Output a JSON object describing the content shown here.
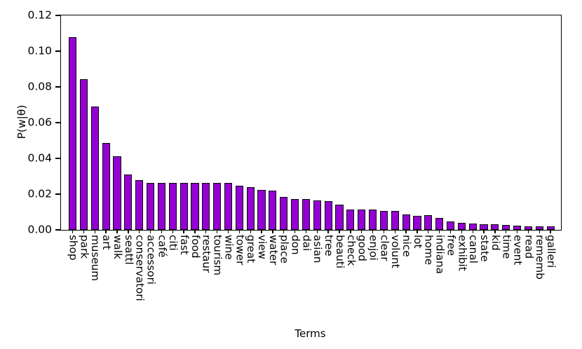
{
  "figure": {
    "background_color": "#ffffff",
    "axis_color": "#000000"
  },
  "chart_data": {
    "type": "bar",
    "title": "",
    "xlabel": "Terms",
    "ylabel": "P(w|θ)",
    "ylim": [
      0,
      0.12
    ],
    "yticks": [
      0,
      0.02,
      0.04,
      0.06,
      0.08,
      0.1,
      0.12
    ],
    "ytick_labels": [
      "0.00",
      "0.02",
      "0.04",
      "0.06",
      "0.08",
      "0.10",
      "0.12"
    ],
    "grid": false,
    "legend": null,
    "bar_color": "#9400D3",
    "bar_edge_color": "#0a0a0a",
    "categories": [
      "shop",
      "park",
      "museum",
      "art",
      "walk",
      "seattl",
      "conservatori",
      "accessori",
      "café",
      "citi",
      "fast",
      "food",
      "restaur",
      "tourism",
      "wine",
      "tower",
      "great",
      "view",
      "water",
      "place",
      "don",
      "dai",
      "asian",
      "tree",
      "beauti",
      "check",
      "good",
      "enjoi",
      "clear",
      "volunt",
      "nice",
      "lot",
      "home",
      "indiana",
      "free",
      "exhibit",
      "canal",
      "state",
      "kid",
      "time",
      "event",
      "read",
      "rememb",
      "galleri"
    ],
    "values": [
      0.108,
      0.0845,
      0.069,
      0.0485,
      0.0413,
      0.0308,
      0.0278,
      0.0263,
      0.0262,
      0.0262,
      0.0262,
      0.0262,
      0.0263,
      0.0263,
      0.0262,
      0.0249,
      0.024,
      0.0222,
      0.0221,
      0.0186,
      0.0173,
      0.0172,
      0.0164,
      0.0162,
      0.014,
      0.0114,
      0.0112,
      0.0112,
      0.0107,
      0.0107,
      0.0088,
      0.008,
      0.0082,
      0.0066,
      0.0046,
      0.004,
      0.0034,
      0.003,
      0.003,
      0.0027,
      0.0024,
      0.0021,
      0.0021,
      0.002
    ]
  }
}
